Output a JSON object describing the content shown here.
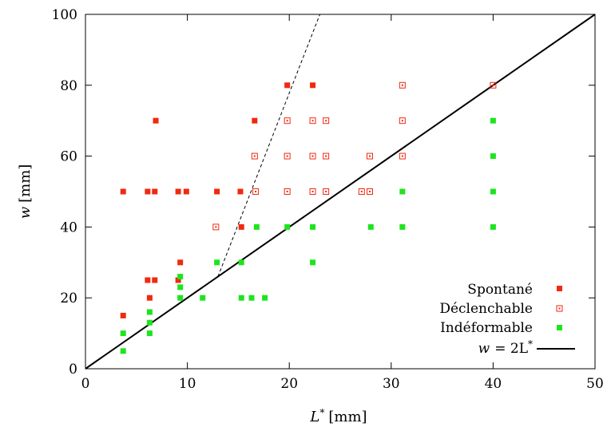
{
  "chart_data": {
    "type": "scatter",
    "title": "",
    "xlabel_var": "L*",
    "xlabel_unit": "[mm]",
    "ylabel_var": "w",
    "ylabel_unit": "[mm]",
    "xlim": [
      0,
      50
    ],
    "ylim": [
      0,
      100
    ],
    "xticks": [
      0,
      10,
      20,
      30,
      40,
      50
    ],
    "yticks": [
      0,
      20,
      40,
      60,
      80,
      100
    ],
    "grid": false,
    "legend_position": "bottom-right",
    "series": [
      {
        "name": "Spontané",
        "color": "#ef2a10",
        "marker": "filled-square",
        "points": [
          [
            3.7,
            15
          ],
          [
            3.7,
            50
          ],
          [
            6.1,
            50
          ],
          [
            6.1,
            25
          ],
          [
            6.3,
            20
          ],
          [
            6.8,
            25
          ],
          [
            6.8,
            50
          ],
          [
            6.9,
            70
          ],
          [
            9.1,
            50
          ],
          [
            9.1,
            25
          ],
          [
            9.3,
            30
          ],
          [
            9.9,
            50
          ],
          [
            12.9,
            50
          ],
          [
            15.2,
            50
          ],
          [
            15.3,
            40
          ],
          [
            16.6,
            70
          ],
          [
            19.8,
            80
          ],
          [
            22.3,
            80
          ]
        ]
      },
      {
        "name": "Déclenchable",
        "color": "#ef2a10",
        "marker": "open-square",
        "points": [
          [
            12.8,
            40
          ],
          [
            16.6,
            60
          ],
          [
            16.7,
            50
          ],
          [
            19.8,
            70
          ],
          [
            19.8,
            60
          ],
          [
            19.8,
            50
          ],
          [
            22.3,
            70
          ],
          [
            22.3,
            60
          ],
          [
            22.3,
            50
          ],
          [
            23.6,
            70
          ],
          [
            23.6,
            60
          ],
          [
            23.6,
            50
          ],
          [
            27.1,
            50
          ],
          [
            27.9,
            60
          ],
          [
            27.9,
            50
          ],
          [
            31.1,
            80
          ],
          [
            31.1,
            70
          ],
          [
            31.1,
            60
          ],
          [
            40.0,
            80
          ]
        ]
      },
      {
        "name": "Indéformable",
        "color": "#1ee41e",
        "marker": "filled-square",
        "points": [
          [
            3.7,
            10
          ],
          [
            3.7,
            5
          ],
          [
            6.3,
            16
          ],
          [
            6.3,
            13
          ],
          [
            6.3,
            10
          ],
          [
            9.3,
            26
          ],
          [
            9.3,
            23
          ],
          [
            9.3,
            20
          ],
          [
            11.5,
            20
          ],
          [
            12.9,
            30
          ],
          [
            15.3,
            30
          ],
          [
            15.3,
            20
          ],
          [
            16.3,
            20
          ],
          [
            16.8,
            40
          ],
          [
            17.6,
            20
          ],
          [
            19.8,
            40
          ],
          [
            22.3,
            40
          ],
          [
            22.3,
            30
          ],
          [
            28.0,
            40
          ],
          [
            31.1,
            50
          ],
          [
            31.1,
            40
          ],
          [
            40.0,
            70
          ],
          [
            40.0,
            60
          ],
          [
            40.0,
            50
          ],
          [
            40.0,
            40
          ]
        ]
      }
    ],
    "line": {
      "name_var": "w",
      "name_expr": "= 2L",
      "name_sup": "*",
      "slope": 2,
      "x_range": [
        0,
        50
      ],
      "color": "#000000"
    },
    "dashed_line": {
      "points": [
        [
          13.0,
          26.0
        ],
        [
          23.0,
          100.0
        ]
      ],
      "color": "#000000"
    }
  }
}
